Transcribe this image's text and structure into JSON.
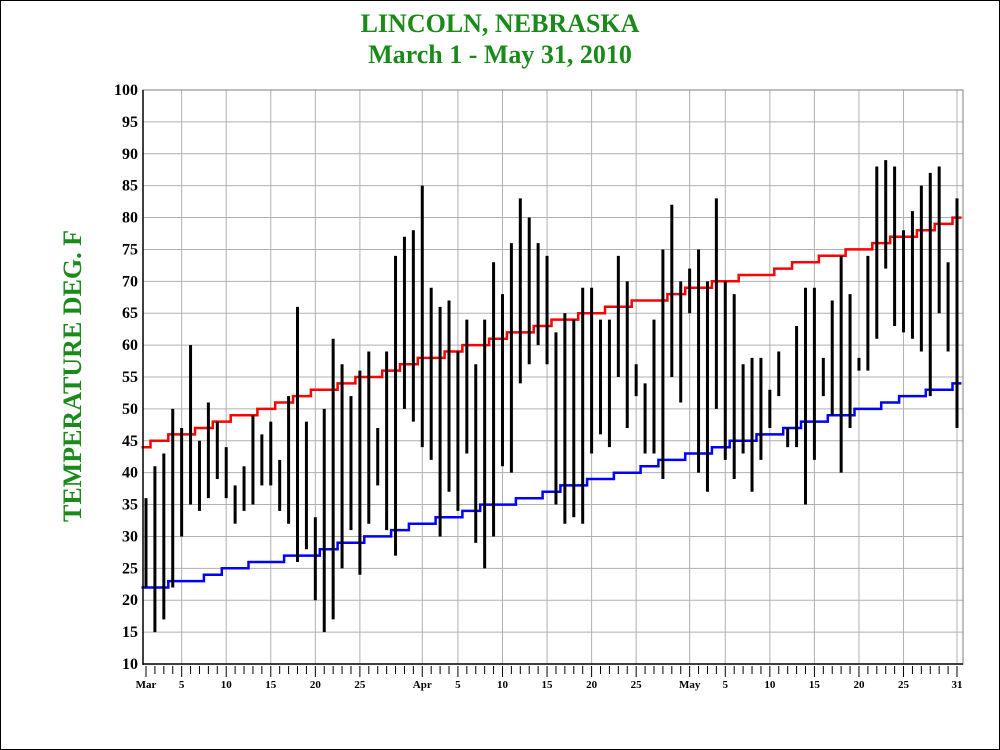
{
  "colors": {
    "title": "#1a8a1a",
    "record_bar": "#000000",
    "normal_high": "#ff0000",
    "normal_low": "#0000ff",
    "grid": "#b0b0b0"
  },
  "chart_data": {
    "type": "bar",
    "title": "LINCOLN, NEBRASKA",
    "subtitle": "March 1 - May 31, 2010",
    "ylabel": "TEMPERATURE DEG. F",
    "xlabel": "",
    "ylim": [
      10,
      100
    ],
    "yticks": [
      10,
      15,
      20,
      25,
      30,
      35,
      40,
      45,
      50,
      55,
      60,
      65,
      70,
      75,
      80,
      85,
      90,
      95,
      100
    ],
    "grid": true,
    "x_tick_labels": [
      {
        "day": 1,
        "label": "Mar"
      },
      {
        "day": 5,
        "label": "5"
      },
      {
        "day": 10,
        "label": "10"
      },
      {
        "day": 15,
        "label": "15"
      },
      {
        "day": 20,
        "label": "20"
      },
      {
        "day": 25,
        "label": "25"
      },
      {
        "day": 32,
        "label": "Apr"
      },
      {
        "day": 36,
        "label": "5"
      },
      {
        "day": 41,
        "label": "10"
      },
      {
        "day": 46,
        "label": "15"
      },
      {
        "day": 51,
        "label": "20"
      },
      {
        "day": 56,
        "label": "25"
      },
      {
        "day": 62,
        "label": "May"
      },
      {
        "day": 66,
        "label": "5"
      },
      {
        "day": 71,
        "label": "10"
      },
      {
        "day": 76,
        "label": "15"
      },
      {
        "day": 81,
        "label": "20"
      },
      {
        "day": 86,
        "label": "25"
      },
      {
        "day": 92,
        "label": "31"
      }
    ],
    "daily_high": [
      36,
      41,
      43,
      50,
      47,
      60,
      45,
      51,
      48,
      44,
      38,
      41,
      49,
      46,
      48,
      42,
      52,
      66,
      48,
      33,
      50,
      61,
      57,
      52,
      56,
      59,
      47,
      59,
      74,
      77,
      78,
      85,
      69,
      66,
      67,
      59,
      64,
      57,
      64,
      73,
      68,
      76,
      83,
      80,
      76,
      74,
      62,
      65,
      64,
      69,
      69,
      64,
      64,
      74,
      70,
      57,
      54,
      64,
      75,
      82,
      70,
      72,
      75,
      70,
      83,
      70,
      68,
      57,
      58,
      58,
      53,
      59,
      47,
      63,
      69,
      69,
      58,
      67,
      74,
      68,
      58,
      74,
      88,
      89,
      88,
      78,
      81,
      85,
      87,
      88,
      73,
      83
    ],
    "daily_low": [
      22,
      15,
      17,
      22,
      30,
      35,
      34,
      36,
      39,
      36,
      32,
      34,
      35,
      38,
      38,
      34,
      32,
      26,
      28,
      20,
      15,
      17,
      25,
      31,
      24,
      32,
      38,
      31,
      27,
      50,
      48,
      44,
      42,
      30,
      37,
      34,
      43,
      29,
      25,
      30,
      41,
      40,
      54,
      57,
      60,
      57,
      35,
      32,
      33,
      32,
      43,
      46,
      44,
      55,
      47,
      52,
      43,
      43,
      39,
      55,
      51,
      65,
      40,
      37,
      50,
      42,
      39,
      43,
      37,
      42,
      47,
      52,
      44,
      44,
      35,
      42,
      52,
      49,
      40,
      47,
      56,
      56,
      61,
      72,
      63,
      62,
      61,
      59,
      52,
      65,
      59,
      47
    ],
    "normal_high": [
      44,
      45,
      45,
      46,
      46,
      46,
      47,
      47,
      48,
      48,
      49,
      49,
      49,
      50,
      50,
      51,
      51,
      52,
      52,
      53,
      53,
      53,
      54,
      54,
      55,
      55,
      55,
      56,
      56,
      57,
      57,
      58,
      58,
      58,
      59,
      59,
      60,
      60,
      60,
      61,
      61,
      62,
      62,
      62,
      63,
      63,
      64,
      64,
      64,
      65,
      65,
      65,
      66,
      66,
      66,
      67,
      67,
      67,
      67,
      68,
      68,
      69,
      69,
      69,
      70,
      70,
      70,
      71,
      71,
      71,
      71,
      72,
      72,
      73,
      73,
      73,
      74,
      74,
      74,
      75,
      75,
      75,
      76,
      76,
      77,
      77,
      77,
      78,
      78,
      79,
      79,
      80
    ],
    "normal_low": [
      22,
      22,
      22,
      23,
      23,
      23,
      23,
      24,
      24,
      25,
      25,
      25,
      26,
      26,
      26,
      26,
      27,
      27,
      27,
      27,
      28,
      28,
      29,
      29,
      29,
      30,
      30,
      30,
      31,
      31,
      32,
      32,
      32,
      33,
      33,
      33,
      34,
      34,
      35,
      35,
      35,
      35,
      36,
      36,
      36,
      37,
      37,
      38,
      38,
      38,
      39,
      39,
      39,
      40,
      40,
      40,
      41,
      41,
      42,
      42,
      42,
      43,
      43,
      43,
      44,
      44,
      45,
      45,
      45,
      46,
      46,
      46,
      47,
      47,
      48,
      48,
      48,
      49,
      49,
      49,
      50,
      50,
      50,
      51,
      51,
      52,
      52,
      52,
      53,
      53,
      53,
      54
    ]
  }
}
